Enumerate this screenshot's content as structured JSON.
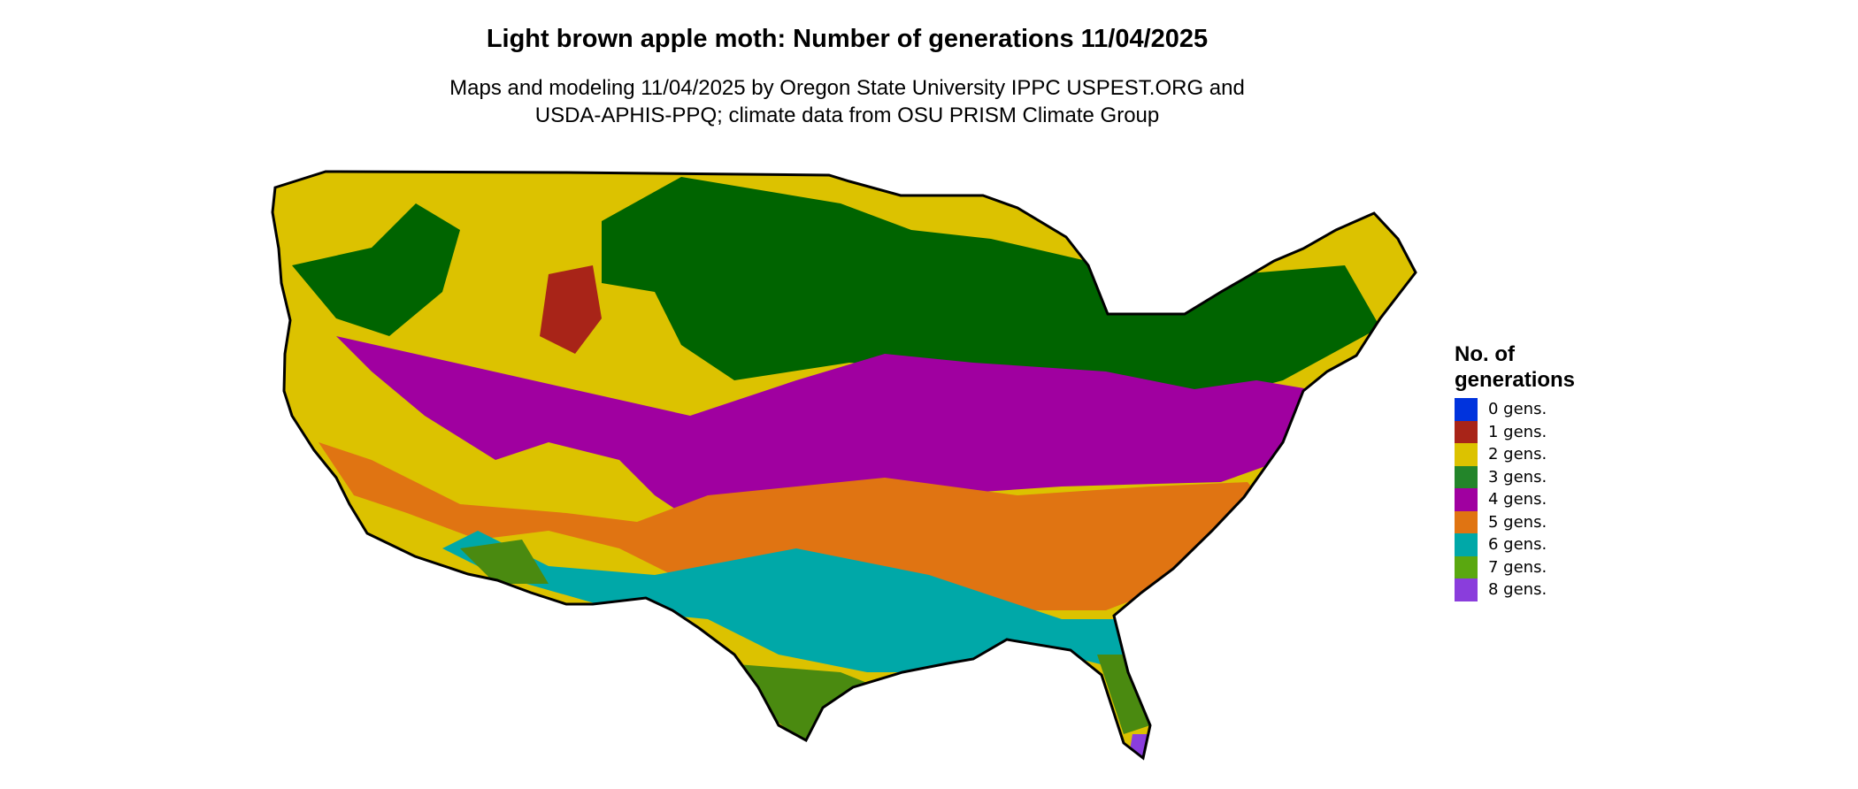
{
  "title": "Light brown apple moth: Number of generations 11/04/2025",
  "subtitle": [
    "Maps and modeling 11/04/2025 by Oregon State University IPPC USPEST.ORG and",
    "USDA-APHIS-PPQ; climate data from OSU PRISM Climate Group"
  ],
  "legend": {
    "title_line1": "No. of",
    "title_line2": "generations",
    "items": [
      {
        "label": "0 gens.",
        "color": "#0033dd"
      },
      {
        "label": "1 gens.",
        "color": "#a82418"
      },
      {
        "label": "2 gens.",
        "color": "#dcc200"
      },
      {
        "label": "3 gens.",
        "color": "#23852a"
      },
      {
        "label": "4 gens.",
        "color": "#a000a0"
      },
      {
        "label": "5 gens.",
        "color": "#e07412"
      },
      {
        "label": "6 gens.",
        "color": "#00a8a8"
      },
      {
        "label": "7 gens.",
        "color": "#5aa810"
      },
      {
        "label": "8 gens.",
        "color": "#8a3ddc"
      }
    ]
  }
}
